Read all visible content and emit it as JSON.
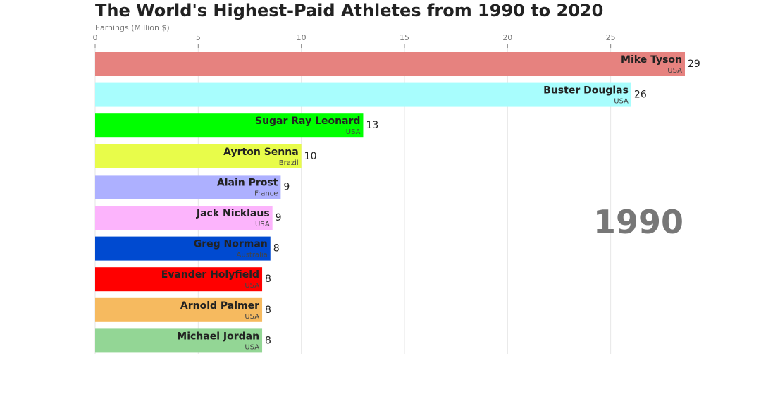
{
  "chart_data": {
    "type": "bar",
    "title": "The World's Highest-Paid Athletes from 1990 to 2020",
    "xlabel": "Earnings (Million $)",
    "xlim": [
      0,
      28.6
    ],
    "xticks": [
      0,
      5,
      10,
      15,
      20,
      25
    ],
    "grid": true,
    "period": "1990",
    "bars": [
      {
        "name": "Mike Tyson",
        "country": "USA",
        "value": 28.6,
        "label": "29",
        "color": "#e6827f"
      },
      {
        "name": "Buster Douglas",
        "country": "USA",
        "value": 26.0,
        "label": "26",
        "color": "#a8fdfd"
      },
      {
        "name": "Sugar Ray Leonard",
        "country": "USA",
        "value": 13.0,
        "label": "13",
        "color": "#00ff00"
      },
      {
        "name": "Ayrton Senna",
        "country": "Brazil",
        "value": 10.0,
        "label": "10",
        "color": "#e8fc4a"
      },
      {
        "name": "Alain Prost",
        "country": "France",
        "value": 9.0,
        "label": "9",
        "color": "#adb0ff"
      },
      {
        "name": "Jack Nicklaus",
        "country": "USA",
        "value": 8.6,
        "label": "9",
        "color": "#fcb4fc"
      },
      {
        "name": "Greg Norman",
        "country": "Australia",
        "value": 8.5,
        "label": "8",
        "color": "#004ad0"
      },
      {
        "name": "Evander Holyfield",
        "country": "USA",
        "value": 8.1,
        "label": "8",
        "color": "#ff0000"
      },
      {
        "name": "Arnold Palmer",
        "country": "USA",
        "value": 8.1,
        "label": "8",
        "color": "#f6ba5f"
      },
      {
        "name": "Michael Jordan",
        "country": "USA",
        "value": 8.1,
        "label": "8",
        "color": "#93d695"
      }
    ]
  }
}
